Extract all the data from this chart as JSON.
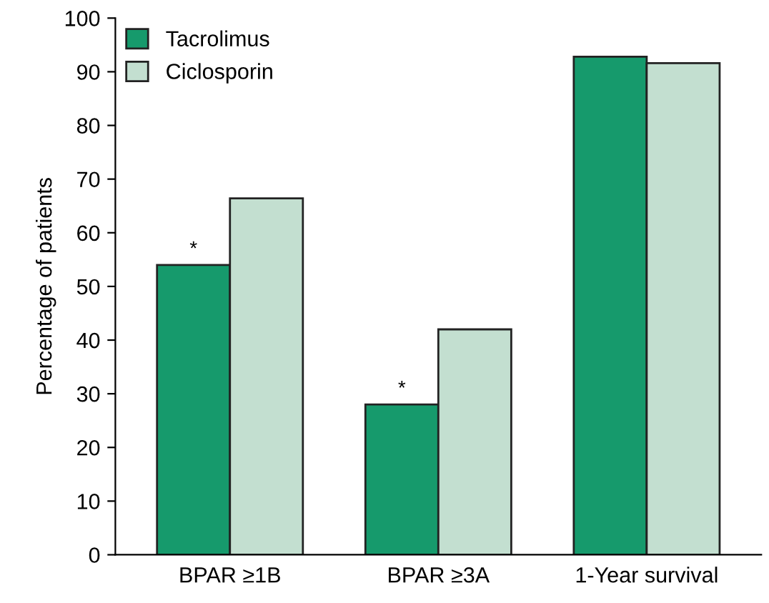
{
  "chart_data": {
    "type": "bar",
    "ylabel": "Percentage of patients",
    "categories": [
      "BPAR ≥1B",
      "BPAR ≥3A",
      "1-Year survival"
    ],
    "series": [
      {
        "name": "Tacrolimus",
        "color": "#169a6c",
        "values": [
          54,
          28,
          92.8
        ]
      },
      {
        "name": "Ciclosporin",
        "color": "#c3dfd0",
        "values": [
          66.4,
          42,
          91.6
        ]
      }
    ],
    "ylim": [
      0,
      100
    ],
    "yticks": [
      0,
      10,
      20,
      30,
      40,
      50,
      60,
      70,
      80,
      90,
      100
    ],
    "grid": false,
    "legend": "top left",
    "annotations": [
      {
        "text": "*",
        "x": "BPAR ≥1B",
        "y": 54
      },
      {
        "text": "*",
        "x": "BPAR ≥3A",
        "y": 28
      }
    ]
  }
}
